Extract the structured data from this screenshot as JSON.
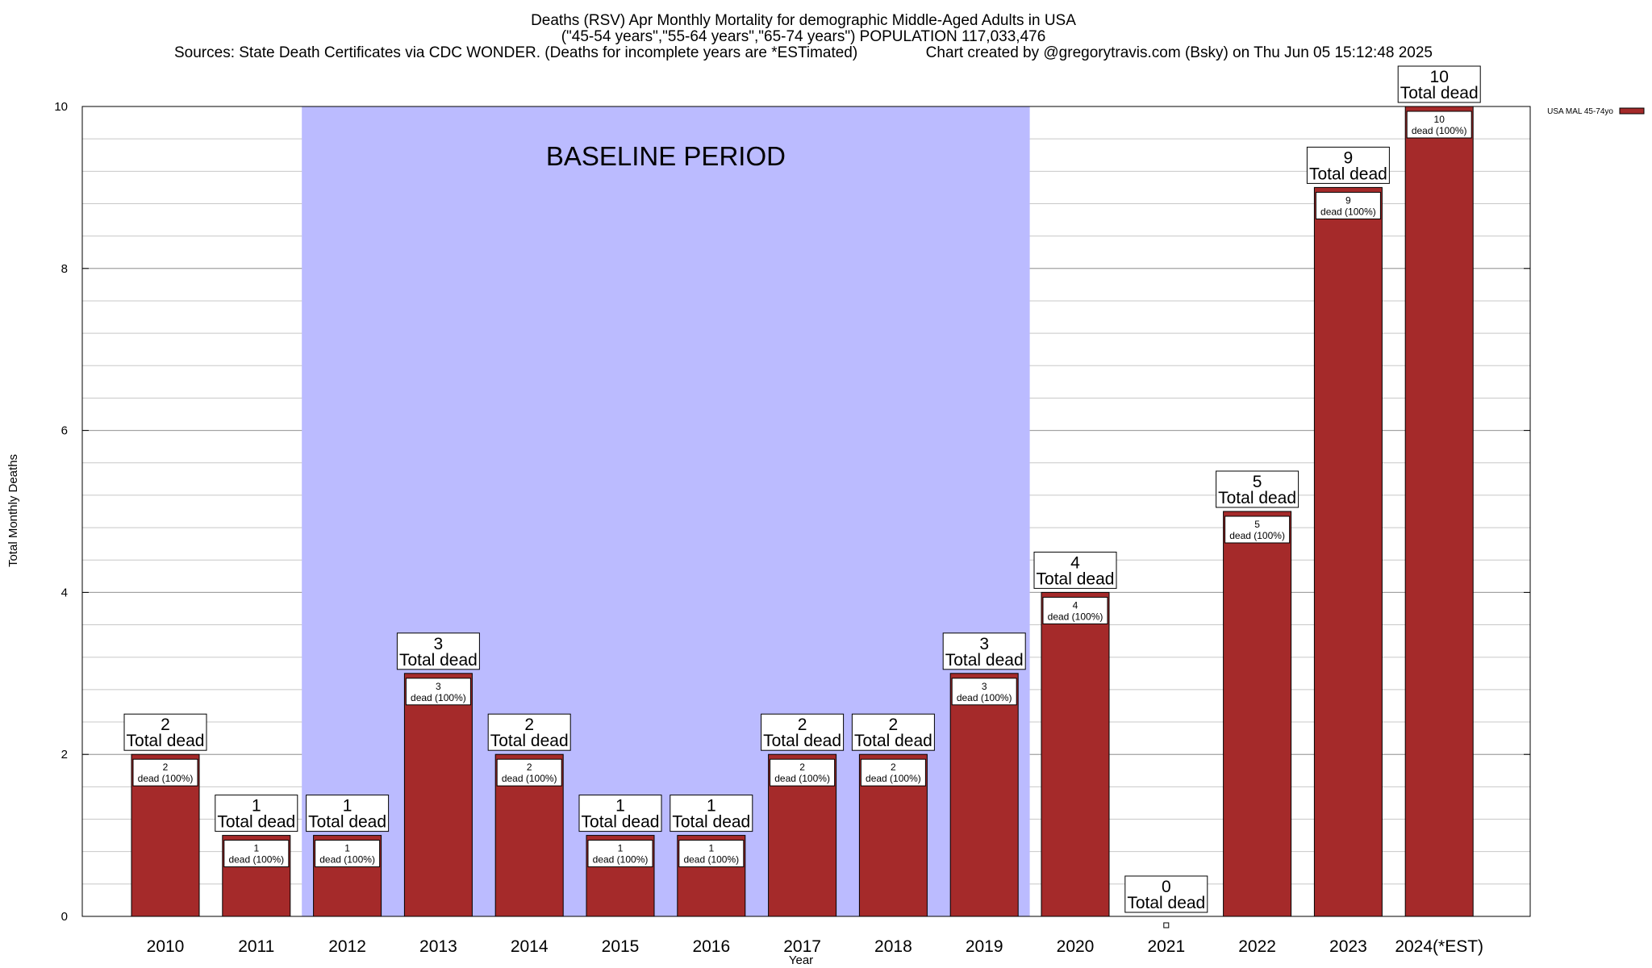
{
  "title": {
    "line1": "Deaths (RSV) Apr Monthly Mortality for demographic Middle-Aged Adults in USA",
    "line2": "(\"45-54 years\",\"55-64 years\",\"65-74 years\") POPULATION 117,033,476",
    "line3": "Sources: State Death Certificates via CDC WONDER. (Deaths for incomplete years are *ESTimated)                Chart created by @gregorytravis.com (Bsky) on Thu Jun 05 15:12:48 2025"
  },
  "chart_data": {
    "type": "bar",
    "xlabel": "Year",
    "ylabel": "Total Monthly Deaths",
    "ylim": [
      0,
      10
    ],
    "yticks": [
      0,
      2,
      4,
      6,
      8,
      10
    ],
    "minor_grid_step": 0.4,
    "grid": true,
    "categories": [
      "2010",
      "2011",
      "2012",
      "2013",
      "2014",
      "2015",
      "2016",
      "2017",
      "2018",
      "2019",
      "2020",
      "2021",
      "2022",
      "2023",
      "2024(*EST)"
    ],
    "series": [
      {
        "name": "USA MAL 45-74yo",
        "color": "#a52a2a",
        "values": [
          2,
          1,
          1,
          3,
          2,
          1,
          1,
          2,
          2,
          3,
          4,
          0,
          5,
          9,
          10
        ]
      }
    ],
    "top_label_suffix": "Total dead",
    "inner_label_suffix": "dead (100%)",
    "baseline_period": {
      "label": "BASELINE PERIOD",
      "start": "2012",
      "end": "2019",
      "color": "#bbbbff"
    },
    "legend": {
      "position": "top-right",
      "label": "USA MAL 45-74yo"
    }
  }
}
